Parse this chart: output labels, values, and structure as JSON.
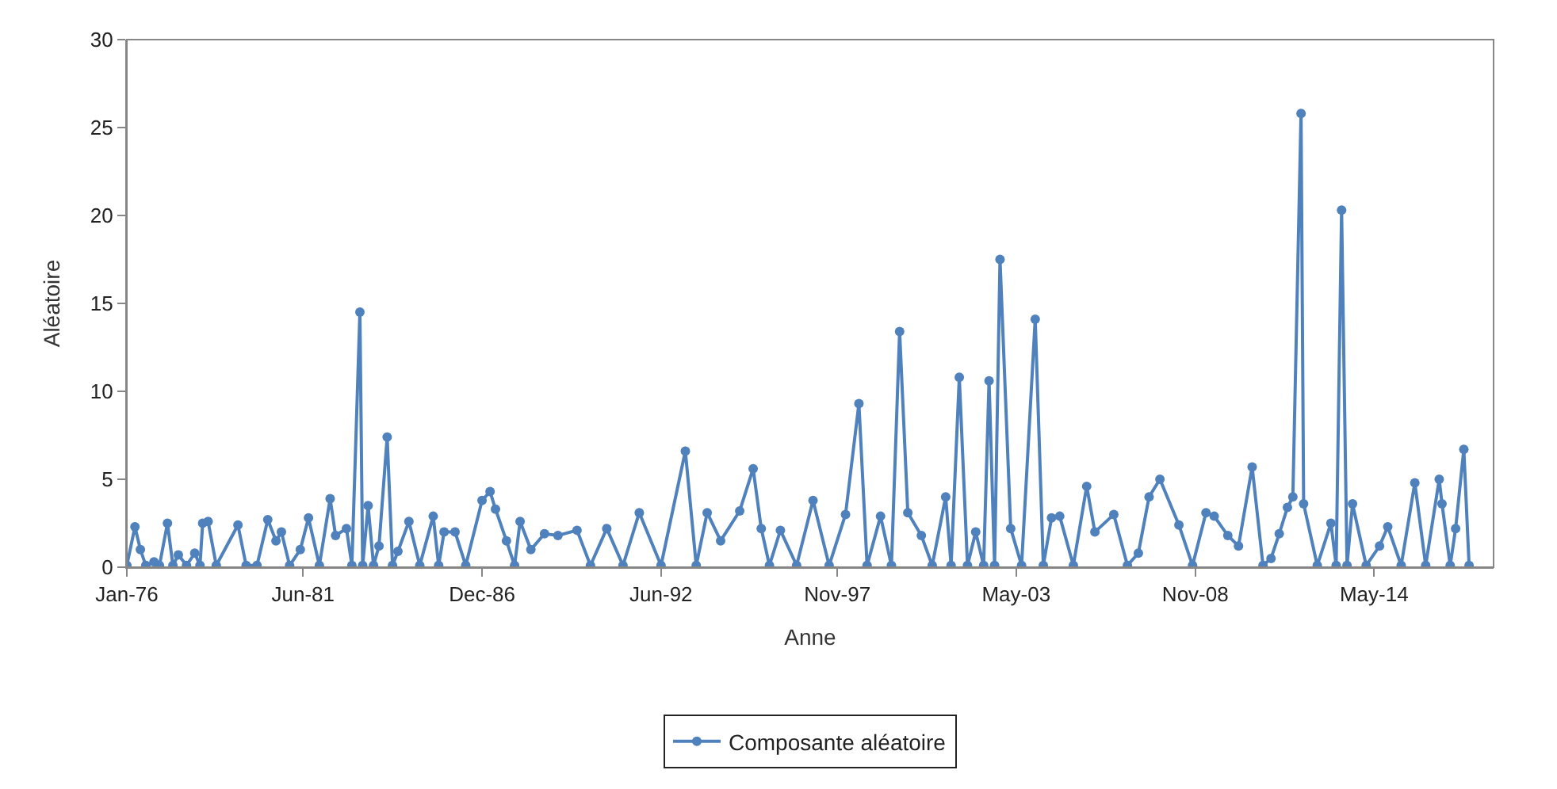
{
  "chart_data": {
    "type": "line",
    "xlabel": "Anne",
    "ylabel": "Aléatoire",
    "xlim": [
      "1976-01-01",
      "2018-01-01"
    ],
    "xticks": [
      {
        "value": "1976-01-01",
        "label": "Jan-76"
      },
      {
        "value": "1981-06-01",
        "label": "Jun-81"
      },
      {
        "value": "1986-12-01",
        "label": "Dec-86"
      },
      {
        "value": "1992-06-01",
        "label": "Jun-92"
      },
      {
        "value": "1997-11-01",
        "label": "Nov-97"
      },
      {
        "value": "2003-05-01",
        "label": "May-03"
      },
      {
        "value": "2008-11-01",
        "label": "Nov-08"
      },
      {
        "value": "2014-05-01",
        "label": "May-14"
      }
    ],
    "ylim": [
      0,
      30
    ],
    "yticks": [
      0,
      5,
      10,
      15,
      20,
      25,
      30
    ],
    "legend": "bottom",
    "marker": "circle",
    "line_style": "solid",
    "series": [
      {
        "name": "Composante aléatoire",
        "color": "#4f81bd",
        "x": [
          "1976-01",
          "1976-04",
          "1976-06",
          "1976-08",
          "1976-11",
          "1977-01",
          "1977-04",
          "1977-06",
          "1977-08",
          "1977-11",
          "1978-02",
          "1978-04",
          "1978-05",
          "1978-07",
          "1978-10",
          "1979-06",
          "1979-09",
          "1980-01",
          "1980-05",
          "1980-08",
          "1980-10",
          "1981-01",
          "1981-05",
          "1981-08",
          "1981-12",
          "1982-04",
          "1982-06",
          "1982-10",
          "1982-12",
          "1983-03",
          "1983-04",
          "1983-06",
          "1983-08",
          "1983-10",
          "1984-01",
          "1984-03",
          "1984-05",
          "1984-09",
          "1985-01",
          "1985-06",
          "1985-08",
          "1985-10",
          "1986-02",
          "1986-06",
          "1986-12",
          "1987-03",
          "1987-05",
          "1987-09",
          "1987-12",
          "1988-02",
          "1988-06",
          "1988-11",
          "1989-04",
          "1989-11",
          "1990-04",
          "1990-10",
          "1991-04",
          "1991-10",
          "1992-06",
          "1993-03",
          "1993-07",
          "1993-11",
          "1994-04",
          "1994-11",
          "1995-04",
          "1995-07",
          "1995-10",
          "1996-02",
          "1996-08",
          "1997-02",
          "1997-08",
          "1998-02",
          "1998-07",
          "1998-10",
          "1999-03",
          "1999-07",
          "1999-10",
          "2000-01",
          "2000-06",
          "2000-10",
          "2001-03",
          "2001-05",
          "2001-08",
          "2001-11",
          "2002-02",
          "2002-05",
          "2002-07",
          "2002-09",
          "2002-11",
          "2003-03",
          "2003-07",
          "2003-12",
          "2004-03",
          "2004-06",
          "2004-09",
          "2005-02",
          "2005-07",
          "2005-10",
          "2006-05",
          "2006-10",
          "2007-02",
          "2007-06",
          "2007-10",
          "2008-05",
          "2008-10",
          "2009-03",
          "2009-06",
          "2009-11",
          "2010-03",
          "2010-08",
          "2010-12",
          "2011-03",
          "2011-06",
          "2011-09",
          "2011-11",
          "2012-02",
          "2012-03",
          "2012-08",
          "2013-01",
          "2013-03",
          "2013-05",
          "2013-07",
          "2013-09",
          "2014-02",
          "2014-07",
          "2014-10",
          "2015-03",
          "2015-08",
          "2015-12",
          "2016-05",
          "2016-06",
          "2016-09",
          "2016-11",
          "2017-02",
          "2017-04"
        ],
        "values": [
          0.1,
          2.3,
          1.0,
          0.1,
          0.3,
          0.1,
          2.5,
          0.1,
          0.7,
          0.1,
          0.8,
          0.1,
          2.5,
          2.6,
          0.1,
          2.4,
          0.1,
          0.1,
          2.7,
          1.5,
          2.0,
          0.1,
          1.0,
          2.8,
          0.1,
          3.9,
          1.8,
          2.2,
          0.1,
          14.5,
          0.1,
          3.5,
          0.1,
          1.2,
          7.4,
          0.1,
          0.9,
          2.6,
          0.1,
          2.9,
          0.1,
          2.0,
          2.0,
          0.1,
          3.8,
          4.3,
          3.3,
          1.5,
          0.1,
          2.6,
          1.0,
          1.9,
          1.8,
          2.1,
          0.1,
          2.2,
          0.1,
          3.1,
          0.1,
          6.6,
          0.1,
          3.1,
          1.5,
          3.2,
          5.6,
          2.2,
          0.1,
          2.1,
          0.1,
          3.8,
          0.1,
          3.0,
          9.3,
          0.1,
          2.9,
          0.1,
          13.4,
          3.1,
          1.8,
          0.1,
          4.0,
          0.1,
          10.8,
          0.1,
          2.0,
          0.1,
          10.6,
          0.1,
          17.5,
          2.2,
          0.1,
          14.1,
          0.1,
          2.8,
          2.9,
          0.1,
          4.6,
          2.0,
          3.0,
          0.1,
          0.8,
          4.0,
          5.0,
          2.4,
          0.1,
          3.1,
          2.9,
          1.8,
          1.2,
          5.7,
          0.1,
          0.5,
          1.9,
          3.4,
          4.0,
          25.8,
          3.6,
          0.1,
          2.5,
          0.1,
          20.3,
          0.1,
          3.6,
          0.1,
          1.2,
          2.3,
          0.1,
          4.8,
          0.1,
          5.0,
          3.6,
          0.1,
          2.2,
          6.7,
          0.1
        ]
      }
    ]
  }
}
